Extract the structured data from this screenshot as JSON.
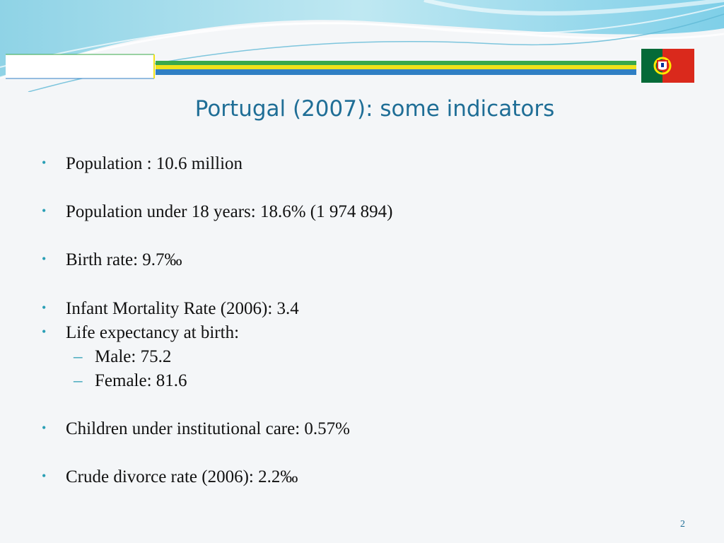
{
  "slide": {
    "title": "Portugal (2007): some indicators",
    "page_number": "2",
    "flag_icon": "portugal-flag-icon",
    "colors": {
      "title": "#1f6e96",
      "bullet": "#2a9fb5",
      "band_yellow": "#f0e21a",
      "band_green": "#3aa84a",
      "band_blue": "#2f7fc4"
    },
    "bullets": [
      {
        "text": "Population : 10.6 million",
        "level": 1
      },
      {
        "text": "Population under  18 years: 18.6% (1 974 894)",
        "level": 1
      },
      {
        "text": "Birth rate: 9.7‰",
        "level": 1
      },
      {
        "text": "Infant Mortality Rate (2006): 3.4",
        "level": 1
      },
      {
        "text": "Life expectancy at birth:",
        "level": 1
      },
      {
        "text": "Male: 75.2",
        "level": 2
      },
      {
        "text": "Female: 81.6",
        "level": 2
      },
      {
        "text": "Children under institutional care: 0.57%",
        "level": 1
      },
      {
        "text": "Crude divorce rate (2006): 2.2‰",
        "level": 1
      }
    ]
  }
}
